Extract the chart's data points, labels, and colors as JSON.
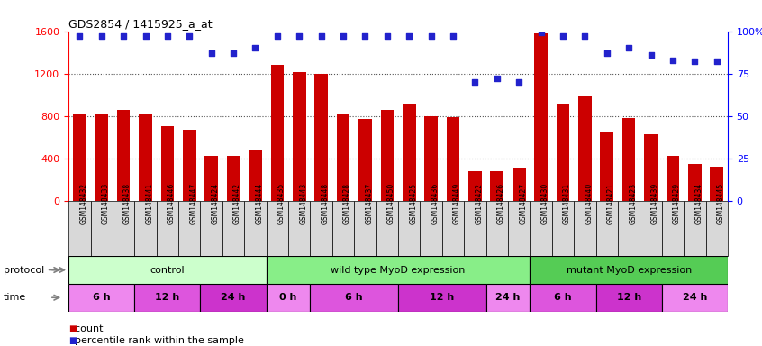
{
  "title": "GDS2854 / 1415925_a_at",
  "samples": [
    "GSM148432",
    "GSM148433",
    "GSM148438",
    "GSM148441",
    "GSM148446",
    "GSM148447",
    "GSM148424",
    "GSM148442",
    "GSM148444",
    "GSM148435",
    "GSM148443",
    "GSM148448",
    "GSM148428",
    "GSM148437",
    "GSM148450",
    "GSM148425",
    "GSM148436",
    "GSM148449",
    "GSM148422",
    "GSM148426",
    "GSM148427",
    "GSM148430",
    "GSM148431",
    "GSM148440",
    "GSM148421",
    "GSM148423",
    "GSM148439",
    "GSM148429",
    "GSM148434",
    "GSM148445"
  ],
  "counts": [
    820,
    810,
    860,
    810,
    700,
    670,
    420,
    420,
    480,
    1280,
    1210,
    1200,
    820,
    770,
    860,
    920,
    800,
    790,
    280,
    280,
    300,
    1580,
    920,
    980,
    640,
    780,
    630,
    420,
    350,
    320
  ],
  "percentiles": [
    97,
    97,
    97,
    97,
    97,
    97,
    87,
    87,
    90,
    97,
    97,
    97,
    97,
    97,
    97,
    97,
    97,
    97,
    70,
    72,
    70,
    99,
    97,
    97,
    87,
    90,
    86,
    83,
    82,
    82
  ],
  "protocol_groups": [
    {
      "label": "control",
      "start": 0,
      "end": 9,
      "color": "#ccffcc"
    },
    {
      "label": "wild type MyoD expression",
      "start": 9,
      "end": 21,
      "color": "#88ee88"
    },
    {
      "label": "mutant MyoD expression",
      "start": 21,
      "end": 30,
      "color": "#55cc55"
    }
  ],
  "time_groups": [
    {
      "label": "6 h",
      "start": 0,
      "end": 3,
      "color": "#ee88ee"
    },
    {
      "label": "12 h",
      "start": 3,
      "end": 6,
      "color": "#dd55dd"
    },
    {
      "label": "24 h",
      "start": 6,
      "end": 9,
      "color": "#cc33cc"
    },
    {
      "label": "0 h",
      "start": 9,
      "end": 11,
      "color": "#ee88ee"
    },
    {
      "label": "6 h",
      "start": 11,
      "end": 15,
      "color": "#dd55dd"
    },
    {
      "label": "12 h",
      "start": 15,
      "end": 19,
      "color": "#cc33cc"
    },
    {
      "label": "24 h",
      "start": 19,
      "end": 21,
      "color": "#ee88ee"
    },
    {
      "label": "6 h",
      "start": 21,
      "end": 24,
      "color": "#dd55dd"
    },
    {
      "label": "12 h",
      "start": 24,
      "end": 27,
      "color": "#cc33cc"
    },
    {
      "label": "24 h",
      "start": 27,
      "end": 30,
      "color": "#ee88ee"
    }
  ],
  "bar_color": "#cc0000",
  "dot_color": "#2222cc",
  "ylim_left": [
    0,
    1600
  ],
  "ylim_right": [
    0,
    100
  ],
  "yticks_left": [
    0,
    400,
    800,
    1200,
    1600
  ],
  "yticks_right": [
    0,
    25,
    50,
    75,
    100
  ],
  "ytick_labels_right": [
    "0",
    "25",
    "50",
    "75",
    "100%"
  ],
  "bg_color": "#ffffff",
  "grid_color": "#555555",
  "cell_bg": "#d8d8d8"
}
